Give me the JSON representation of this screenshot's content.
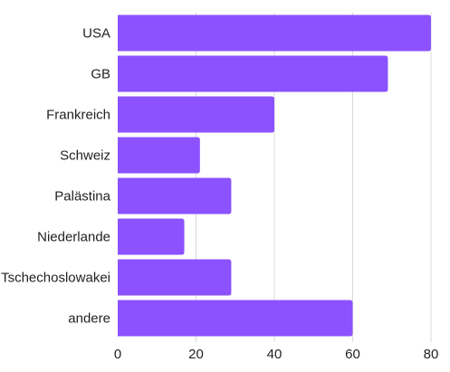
{
  "chart_data": {
    "type": "bar",
    "orientation": "horizontal",
    "categories": [
      "USA",
      "GB",
      "Frankreich",
      "Schweiz",
      "Palästina",
      "Niederlande",
      "Tschechoslowakei",
      "andere"
    ],
    "values": [
      80,
      69,
      40,
      21,
      29,
      17,
      29,
      60
    ],
    "xticks": [
      "0",
      "20",
      "40",
      "60",
      "80"
    ],
    "xlim": [
      0,
      80
    ],
    "grid": true,
    "title": "",
    "xlabel": "",
    "ylabel": "",
    "colors": {
      "bar": "#8c52ff",
      "grid": "#d9d9d9",
      "text": "#222222"
    }
  }
}
